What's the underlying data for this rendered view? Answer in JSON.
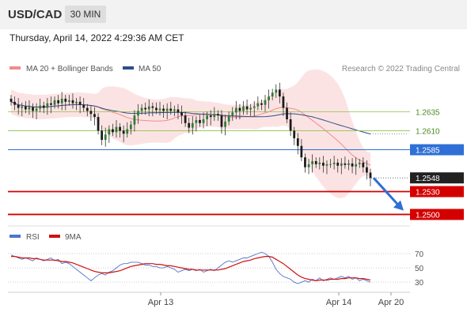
{
  "header": {
    "symbol": "USD/CAD",
    "timeframe": "30 MIN",
    "datetime": "Thursday, April 14, 2022 4:29:36 AM CET"
  },
  "legend": {
    "items": [
      {
        "label": "MA 20 + Bollinger Bands",
        "color": "#f08c8c"
      },
      {
        "label": "MA 50",
        "color": "#2e4d8a"
      }
    ],
    "credit": "Research © 2022 Trading Central"
  },
  "rsi_legend": {
    "items": [
      {
        "label": "RSI",
        "color": "#4f74c9"
      },
      {
        "label": "9MA",
        "color": "#d01010"
      }
    ]
  },
  "colors": {
    "candle_up": "#2e7d32",
    "candle_down": "#1a1a1a",
    "green_level": "#8bc34a",
    "blue_level": "#2f6fd6",
    "red_level": "#d40000",
    "current_price_bg": "#222222",
    "arrow": "#2f6fd6"
  },
  "chart_data": [
    {
      "type": "line",
      "title": "",
      "xlabel": "",
      "ylabel": "",
      "ylim": [
        1.2488,
        1.268
      ],
      "x_ticks": [
        "Apr 13",
        "Apr 14",
        "Apr 20"
      ],
      "levels": [
        {
          "value": 1.2635,
          "label": "1.2635",
          "style": "green"
        },
        {
          "value": 1.261,
          "label": "1.2610",
          "style": "green"
        },
        {
          "value": 1.2585,
          "label": "1.2585",
          "style": "blue"
        },
        {
          "value": 1.2548,
          "label": "1.2548",
          "style": "current"
        },
        {
          "value": 1.253,
          "label": "1.2530",
          "style": "red"
        },
        {
          "value": 1.25,
          "label": "1.2500",
          "style": "red"
        }
      ],
      "closes": [
        1.2648,
        1.2644,
        1.264,
        1.2642,
        1.2638,
        1.2641,
        1.2636,
        1.2639,
        1.2643,
        1.264,
        1.2646,
        1.2644,
        1.265,
        1.2646,
        1.2652,
        1.2648,
        1.265,
        1.2646,
        1.2648,
        1.2644,
        1.264,
        1.2636,
        1.2632,
        1.2628,
        1.261,
        1.2598,
        1.2605,
        1.2612,
        1.2608,
        1.2615,
        1.261,
        1.2606,
        1.2612,
        1.2618,
        1.263,
        1.2636,
        1.264,
        1.2638,
        1.2642,
        1.264,
        1.2637,
        1.2639,
        1.2636,
        1.2639,
        1.2636,
        1.2638,
        1.2634,
        1.263,
        1.262,
        1.2614,
        1.262,
        1.2624,
        1.262,
        1.2625,
        1.263,
        1.2628,
        1.2632,
        1.263,
        1.2615,
        1.2622,
        1.263,
        1.2634,
        1.264,
        1.2636,
        1.2642,
        1.2638,
        1.264,
        1.2642,
        1.2646,
        1.2644,
        1.265,
        1.2655,
        1.266,
        1.2664,
        1.2655,
        1.264,
        1.2625,
        1.261,
        1.26,
        1.259,
        1.2575,
        1.2562,
        1.2566,
        1.257,
        1.2566,
        1.2568,
        1.2564,
        1.2566,
        1.2566,
        1.2568,
        1.2564,
        1.2567,
        1.2565,
        1.2567,
        1.2563,
        1.2566,
        1.2568,
        1.2562,
        1.2555,
        1.2548
      ],
      "forecast_arrow": {
        "from": 1.2548,
        "to": 1.2505
      }
    },
    {
      "type": "line",
      "title": "",
      "ylim": [
        18,
        80
      ],
      "y_ticks": [
        70,
        50,
        30
      ],
      "series": [
        {
          "name": "RSI",
          "values": [
            68,
            66,
            64,
            62,
            64,
            62,
            60,
            64,
            62,
            60,
            62,
            64,
            60,
            62,
            56,
            58,
            56,
            52,
            48,
            44,
            40,
            36,
            32,
            36,
            40,
            42,
            40,
            44,
            46,
            50,
            54,
            56,
            56,
            58,
            58,
            58,
            56,
            54,
            54,
            52,
            52,
            50,
            50,
            52,
            50,
            48,
            44,
            46,
            48,
            46,
            48,
            46,
            48,
            44,
            46,
            48,
            46,
            50,
            54,
            58,
            60,
            58,
            60,
            62,
            64,
            64,
            66,
            68,
            70,
            72,
            70,
            66,
            58,
            48,
            42,
            38,
            36,
            34,
            30,
            28,
            30,
            32,
            30,
            34,
            32,
            36,
            32,
            34,
            36,
            34,
            36,
            38,
            36,
            38,
            34,
            36,
            32,
            34,
            32,
            30
          ]
        },
        {
          "name": "9MA",
          "values": [
            66,
            66,
            65,
            64,
            64,
            64,
            63,
            63,
            62,
            61,
            61,
            61,
            61,
            60,
            59,
            59,
            58,
            57,
            55,
            53,
            51,
            49,
            47,
            45,
            44,
            43,
            43,
            43,
            44,
            45,
            46,
            48,
            50,
            52,
            53,
            54,
            55,
            56,
            56,
            56,
            55,
            55,
            54,
            53,
            53,
            52,
            51,
            50,
            49,
            48,
            48,
            47,
            47,
            47,
            47,
            47,
            47,
            47,
            48,
            49,
            51,
            53,
            55,
            57,
            59,
            60,
            61,
            63,
            64,
            65,
            66,
            66,
            65,
            62,
            59,
            56,
            52,
            48,
            44,
            40,
            37,
            35,
            34,
            33,
            32,
            33,
            33,
            33,
            34,
            34,
            34,
            35,
            35,
            36,
            36,
            36,
            35,
            35,
            34,
            33
          ]
        }
      ]
    }
  ]
}
